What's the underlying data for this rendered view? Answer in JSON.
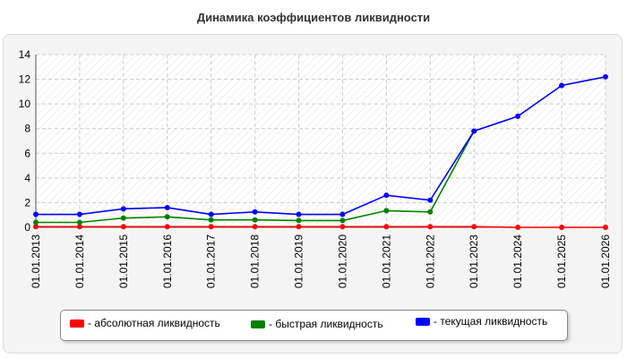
{
  "chart_data": {
    "type": "line",
    "title": "Динамика коэффициентов ликвидности",
    "categories": [
      "01.01.2013",
      "01.01.2014",
      "01.01.2015",
      "01.01.2016",
      "01.01.2017",
      "01.01.2018",
      "01.01.2019",
      "01.01.2020",
      "01.01.2021",
      "01.01.2022",
      "01.01.2023",
      "01.01.2024",
      "01.01.2025",
      "01.01.2026"
    ],
    "ylim": [
      0,
      14
    ],
    "yticks": [
      0,
      2,
      4,
      6,
      8,
      10,
      12,
      14
    ],
    "grid": true,
    "legend_position": "bottom",
    "series": [
      {
        "name": "- абсолютная ликвидность",
        "color": "#ff0000",
        "values": [
          0.05,
          0.05,
          0.05,
          0.05,
          0.05,
          0.05,
          0.05,
          0.05,
          0.05,
          0.05,
          0.05,
          0.0,
          0.0,
          0.0
        ]
      },
      {
        "name": "- быстрая ликвидность",
        "color": "#008000",
        "values": [
          0.4,
          0.4,
          0.75,
          0.85,
          0.6,
          0.6,
          0.55,
          0.55,
          1.35,
          1.25,
          7.8,
          null,
          null,
          null
        ]
      },
      {
        "name": "- текущая ликвидность",
        "color": "#0000ff",
        "values": [
          1.05,
          1.05,
          1.5,
          1.6,
          1.05,
          1.25,
          1.05,
          1.05,
          2.6,
          2.2,
          7.8,
          9.0,
          11.5,
          12.2
        ]
      }
    ]
  }
}
